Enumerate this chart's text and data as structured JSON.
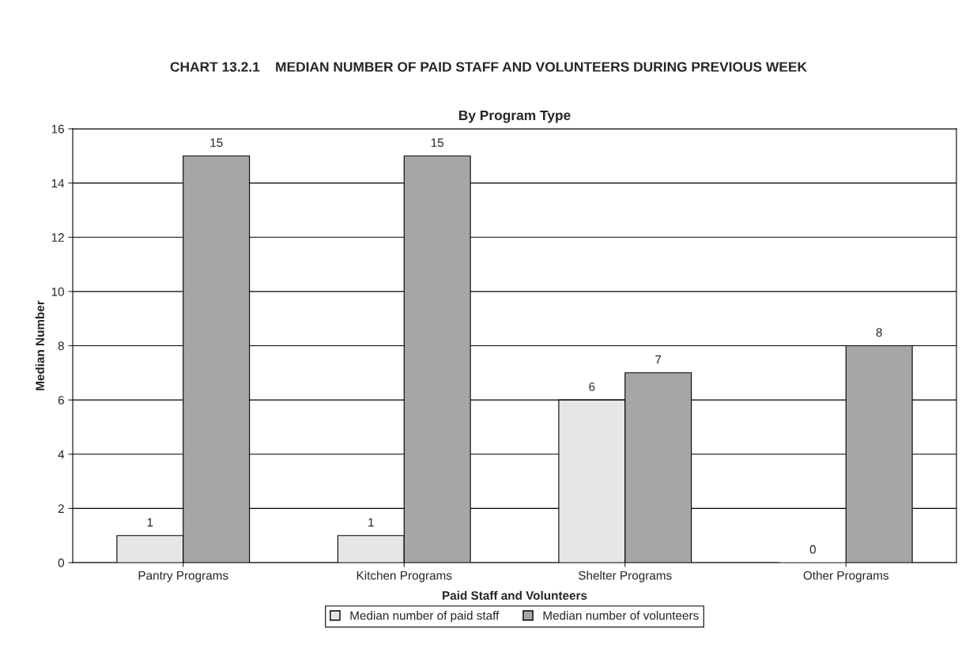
{
  "chart_data": {
    "type": "bar",
    "title": "CHART 13.2.1    MEDIAN NUMBER OF PAID STAFF AND VOLUNTEERS DURING PREVIOUS WEEK",
    "subtitle": "By Program Type",
    "xlabel": "Paid Staff and Volunteers",
    "ylabel": "Median Number",
    "categories": [
      "Pantry Programs",
      "Kitchen Programs",
      "Shelter Programs",
      "Other Programs"
    ],
    "series": [
      {
        "name": "Median number of paid staff",
        "color": "#e6e6e6",
        "values": [
          1,
          1,
          6,
          0
        ]
      },
      {
        "name": "Median number of volunteers",
        "color": "#a6a6a6",
        "values": [
          15,
          15,
          7,
          8
        ]
      }
    ],
    "ylim": [
      0,
      16
    ],
    "yticks": [
      0,
      2,
      4,
      6,
      8,
      10,
      12,
      14,
      16
    ],
    "grid": "y",
    "legend": "bottom",
    "data_labels": true
  }
}
